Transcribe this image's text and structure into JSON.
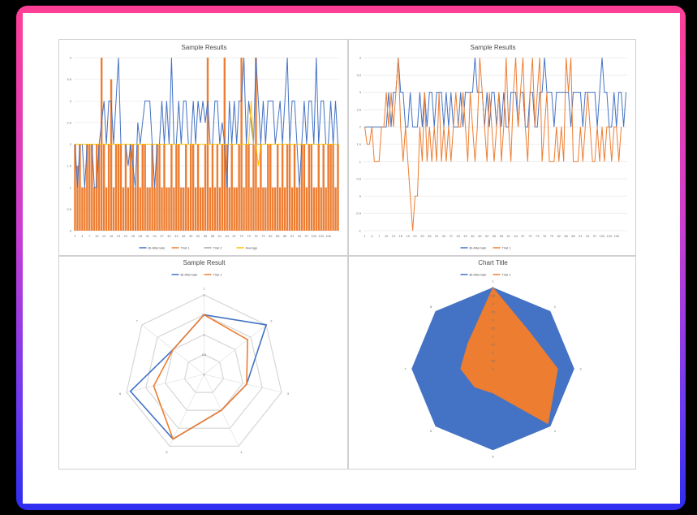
{
  "chart_data": [
    {
      "type": "bar",
      "title": "Sample Results",
      "legend": "bottom",
      "ylim": [
        0,
        4
      ],
      "yticks": [
        "0",
        "0.5",
        "1",
        "1.5",
        "2",
        "2.5",
        "3",
        "3.5",
        "4"
      ],
      "xticks": [
        "1",
        "4",
        "7",
        "10",
        "13",
        "16",
        "19",
        "22",
        "25",
        "28",
        "31",
        "34",
        "37",
        "40",
        "43",
        "46",
        "49",
        "52",
        "55",
        "58",
        "61",
        "64",
        "67",
        "70",
        "73",
        "76",
        "79",
        "82",
        "85",
        "88",
        "91",
        "94",
        "97",
        "100",
        "103",
        "106"
      ],
      "series": [
        {
          "name": "Bi-Alternate",
          "color": "#4472c4",
          "kind": "line",
          "values": [
            2,
            1,
            2,
            2,
            1,
            2,
            2,
            2,
            1,
            1,
            2,
            2.5,
            3,
            2,
            3,
            3,
            2,
            3,
            4,
            2,
            2,
            2,
            1.5,
            2,
            1.5,
            1,
            2.5,
            2,
            2.5,
            3,
            3,
            3,
            2,
            1,
            2,
            2,
            3,
            2,
            3,
            2,
            4,
            2,
            2,
            3,
            2,
            3,
            3,
            2,
            2,
            3,
            2,
            3,
            2.5,
            3,
            2.5,
            3,
            2,
            2,
            3,
            3,
            2,
            2.5,
            2,
            1,
            3,
            2,
            3,
            2,
            3,
            3,
            4,
            2,
            3,
            2.5,
            2,
            4,
            3,
            2,
            3,
            2,
            3,
            3,
            3,
            2,
            2.5,
            3,
            2,
            3,
            4,
            2,
            3,
            3,
            2,
            1,
            2,
            3,
            2,
            3,
            3,
            2,
            4,
            2,
            3,
            3,
            2,
            2,
            3,
            2,
            3,
            2
          ]
        },
        {
          "name": "Trial 1",
          "color": "#ed7d31",
          "kind": "bar",
          "values": [
            2,
            1.5,
            2,
            1,
            1,
            2,
            2,
            2,
            1,
            2,
            2,
            4,
            2,
            1,
            2,
            3.5,
            1,
            2,
            2,
            2,
            1,
            2,
            1,
            2,
            2,
            1,
            2,
            1,
            2,
            2,
            1,
            1,
            2,
            1,
            2,
            2,
            1,
            2,
            1,
            1,
            2,
            1,
            2,
            2,
            1,
            1,
            2,
            1,
            2,
            2,
            1,
            2,
            1,
            1,
            2,
            4,
            1,
            2,
            1,
            2,
            1,
            2,
            4,
            2,
            1,
            2,
            1,
            1,
            2,
            4,
            1,
            2,
            2,
            1,
            2,
            4,
            1,
            2,
            1,
            1,
            2,
            2,
            1,
            1,
            2,
            1,
            2,
            1,
            2,
            2,
            1,
            2,
            1,
            1,
            2,
            2,
            1,
            2,
            2,
            1,
            1,
            2,
            1,
            2,
            1,
            2,
            2,
            2,
            1,
            2
          ]
        },
        {
          "name": "Trial 2",
          "color": "#a5a5a5",
          "kind": "line",
          "values": [
            2,
            2,
            2,
            2,
            2,
            2,
            2,
            2,
            2,
            2,
            2,
            2,
            2,
            2,
            2,
            2,
            2,
            2,
            2,
            2,
            2,
            2,
            2,
            2,
            2,
            2,
            2,
            2,
            2,
            2,
            2,
            2,
            2,
            2,
            2,
            2,
            2,
            2,
            2,
            2,
            2,
            2,
            2,
            2,
            2,
            2,
            2,
            2,
            2,
            2,
            2,
            2,
            2,
            2,
            2,
            2,
            2,
            2,
            2,
            2,
            2,
            2,
            2,
            2,
            2,
            2,
            2,
            2,
            2,
            2,
            2,
            2,
            2,
            2,
            2,
            2,
            2,
            2,
            2,
            2,
            2,
            2,
            2,
            2,
            2,
            2,
            2,
            2,
            2,
            2,
            2,
            2,
            2,
            2,
            2,
            2,
            2,
            2,
            2,
            2,
            2,
            2,
            2,
            2,
            2,
            2,
            2,
            2,
            2,
            2
          ]
        },
        {
          "name": "Average",
          "color": "#ffc000",
          "kind": "line",
          "values": [
            2,
            2,
            2,
            2,
            2,
            2,
            2,
            2,
            2,
            2,
            2,
            2,
            2,
            2,
            2,
            2,
            2,
            2,
            2,
            2,
            2,
            2,
            2,
            2,
            2,
            2,
            2,
            2,
            2,
            2,
            2,
            2,
            2,
            2,
            2,
            2,
            2,
            2,
            2,
            2,
            2,
            2,
            2,
            2,
            2,
            2,
            2,
            2,
            2,
            2,
            2,
            2,
            2,
            2,
            2,
            2,
            2,
            2,
            2,
            2,
            2,
            2,
            2,
            2,
            2,
            2,
            2,
            2,
            2,
            2,
            2,
            2,
            2,
            3,
            2,
            2,
            1.5,
            2,
            2,
            2,
            2,
            2,
            2,
            2,
            2,
            2,
            2,
            2,
            2,
            2,
            2,
            2,
            2,
            2,
            2,
            2,
            2,
            2,
            2,
            2,
            2,
            2,
            2,
            2,
            2,
            2,
            2,
            2,
            2,
            2
          ]
        }
      ]
    },
    {
      "type": "line",
      "title": "Sample Results",
      "legend": "bottom",
      "ylim": [
        -1,
        4
      ],
      "yticks": [
        "-1",
        "-0.5",
        "0",
        "0.5",
        "1",
        "1.5",
        "2",
        "2.5",
        "3",
        "3.5",
        "4"
      ],
      "xticks": [
        "1",
        "4",
        "7",
        "10",
        "13",
        "16",
        "19",
        "22",
        "25",
        "28",
        "31",
        "34",
        "37",
        "40",
        "43",
        "46",
        "49",
        "52",
        "55",
        "58",
        "61",
        "64",
        "67",
        "70",
        "73",
        "76",
        "79",
        "82",
        "85",
        "88",
        "91",
        "94",
        "97",
        "100",
        "103",
        "106"
      ],
      "series": [
        {
          "name": "Bi-Alternate",
          "color": "#4472c4",
          "values": [
            2,
            2,
            2,
            2,
            2,
            2,
            2,
            2,
            2,
            2,
            3,
            2,
            3,
            3,
            4,
            3,
            3,
            2,
            2,
            3,
            2,
            2,
            2,
            3,
            2,
            3,
            2,
            3,
            3,
            2,
            3,
            3,
            3,
            2,
            3,
            2,
            3,
            2,
            2,
            2,
            3,
            2,
            3,
            3,
            3,
            3,
            4,
            3,
            3,
            3,
            2,
            3,
            2,
            3,
            3,
            2,
            3,
            2,
            3,
            2,
            2,
            3,
            3,
            3,
            2,
            3,
            3,
            2,
            2,
            3,
            3,
            2,
            2,
            3,
            3,
            4,
            3,
            3,
            3,
            2,
            3,
            3,
            3,
            3,
            3,
            3,
            2,
            3,
            3,
            3,
            3,
            2,
            3,
            3,
            3,
            3,
            3,
            2,
            3,
            4,
            3,
            3,
            2,
            2,
            3,
            2,
            3,
            3,
            2,
            3
          ]
        },
        {
          "name": "Trial 1",
          "color": "#ed7d31",
          "values": [
            2,
            1.5,
            1.5,
            2,
            1,
            1,
            1,
            2,
            2,
            3,
            2,
            3,
            2,
            3,
            4,
            2,
            1,
            2,
            1,
            0,
            -1,
            0,
            0,
            2,
            1,
            3,
            1,
            2,
            1,
            2,
            1,
            3,
            1,
            2,
            1,
            2,
            1,
            2,
            3,
            2,
            2,
            3,
            2,
            1,
            3,
            2,
            1,
            2,
            4,
            3,
            2,
            1,
            3,
            2,
            1,
            2,
            3,
            1,
            2,
            4,
            2,
            1,
            3,
            4,
            2,
            3,
            4,
            2,
            1,
            3,
            4,
            2,
            3,
            4,
            1,
            2,
            3,
            1,
            1,
            1,
            2,
            1,
            2,
            1,
            4,
            3,
            4,
            1,
            1,
            1,
            2,
            1,
            2,
            3,
            2,
            1,
            1,
            2,
            1,
            2,
            1,
            2,
            2,
            1,
            2,
            2,
            1,
            2
          ]
        }
      ]
    },
    {
      "type": "radar",
      "title": "Sample Result",
      "legend": "top",
      "rmax": 2,
      "rticks": [
        "0",
        "0.5",
        "1",
        "1.5",
        "2"
      ],
      "categories": [
        "1",
        "2",
        "3",
        "4",
        "5",
        "6",
        "7"
      ],
      "series": [
        {
          "name": "Bi-Alternate",
          "color": "#4472c4",
          "values": [
            1.5,
            2,
            1.1,
            1,
            1.8,
            1.9,
            1
          ]
        },
        {
          "name": "Trial 1",
          "color": "#ed7d31",
          "values": [
            1.5,
            1.4,
            1.1,
            1,
            1.8,
            1.3,
            1
          ]
        }
      ]
    },
    {
      "type": "radar-filled",
      "title": "Chart Title",
      "legend": "top",
      "rmax": 5,
      "rticks": [
        "0",
        "0.5",
        "1",
        "1.5",
        "2",
        "2.5",
        "3",
        "3.5",
        "4",
        "4.5",
        "5"
      ],
      "categories": [
        "1",
        "2",
        "3",
        "4",
        "5",
        "6",
        "7",
        "8"
      ],
      "series": [
        {
          "name": "Bi-Alternate",
          "color": "#4472c4",
          "values": [
            5,
            5,
            5,
            5,
            5,
            5,
            5,
            5
          ]
        },
        {
          "name": "Trial 1",
          "color": "#ed7d31",
          "values": [
            5,
            3.2,
            4,
            4.8,
            1.5,
            1.6,
            2,
            2.2
          ]
        }
      ]
    }
  ]
}
